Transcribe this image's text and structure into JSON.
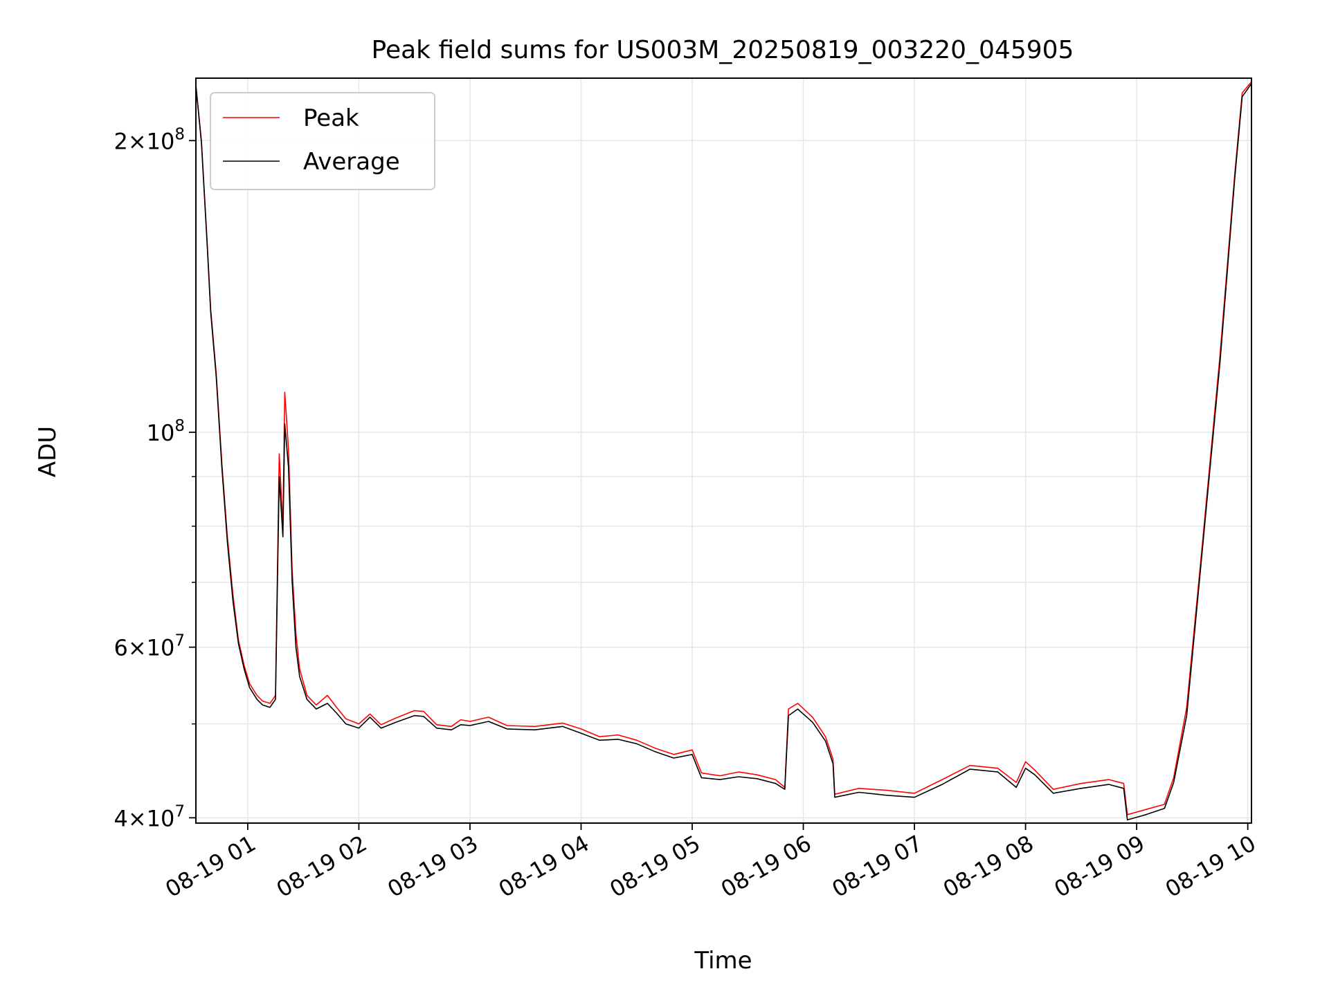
{
  "chart_data": {
    "type": "line",
    "title": "Peak field sums for US003M_20250819_003220_045905",
    "xlabel": "Time",
    "ylabel": "ADU",
    "y_scale": "log",
    "xlim": [
      "2025-08-19 00:32",
      "2025-08-19 10:02"
    ],
    "ylim": [
      39500000,
      232000000
    ],
    "x_ticks": [
      "2025-08-19 01:00",
      "2025-08-19 02:00",
      "2025-08-19 03:00",
      "2025-08-19 04:00",
      "2025-08-19 05:00",
      "2025-08-19 06:00",
      "2025-08-19 07:00",
      "2025-08-19 08:00",
      "2025-08-19 09:00",
      "2025-08-19 10:00"
    ],
    "x_tick_labels": [
      "08-19 01",
      "08-19 02",
      "08-19 03",
      "08-19 04",
      "08-19 05",
      "08-19 06",
      "08-19 07",
      "08-19 08",
      "08-19 09",
      "08-19 10"
    ],
    "y_major_ticks": [
      {
        "value": 40000000,
        "mantissa": "4",
        "exponent": "7"
      },
      {
        "value": 60000000,
        "mantissa": "6",
        "exponent": "7"
      },
      {
        "value": 100000000,
        "mantissa": "",
        "exponent": "8"
      },
      {
        "value": 200000000,
        "mantissa": "2",
        "exponent": "8"
      }
    ],
    "y_minor_gridlines": [
      50000000,
      70000000,
      80000000,
      90000000
    ],
    "grid": true,
    "legend": {
      "position": "top-left",
      "entries": [
        {
          "label": "Peak",
          "color": "#ff0000"
        },
        {
          "label": "Average",
          "color": "#000000"
        }
      ]
    },
    "series": [
      {
        "name": "Peak",
        "color": "#ff0000",
        "points": [
          [
            "2025-08-19 00:32",
            228000000
          ],
          [
            "2025-08-19 00:35",
            200000000
          ],
          [
            "2025-08-19 00:38",
            158000000
          ],
          [
            "2025-08-19 00:40",
            134000000
          ],
          [
            "2025-08-19 00:43",
            115000000
          ],
          [
            "2025-08-19 00:46",
            93000000
          ],
          [
            "2025-08-19 00:49",
            78000000
          ],
          [
            "2025-08-19 00:52",
            68000000
          ],
          [
            "2025-08-19 00:55",
            61000000
          ],
          [
            "2025-08-19 00:58",
            57500000
          ],
          [
            "2025-08-19 01:01",
            55000000
          ],
          [
            "2025-08-19 01:05",
            53500000
          ],
          [
            "2025-08-19 01:08",
            52800000
          ],
          [
            "2025-08-19 01:12",
            52500000
          ],
          [
            "2025-08-19 01:15",
            53500000
          ],
          [
            "2025-08-19 01:17",
            95000000
          ],
          [
            "2025-08-19 01:19",
            80000000
          ],
          [
            "2025-08-19 01:20",
            110000000
          ],
          [
            "2025-08-19 01:22",
            96000000
          ],
          [
            "2025-08-19 01:24",
            72000000
          ],
          [
            "2025-08-19 01:26",
            62000000
          ],
          [
            "2025-08-19 01:28",
            57000000
          ],
          [
            "2025-08-19 01:32",
            53500000
          ],
          [
            "2025-08-19 01:37",
            52300000
          ],
          [
            "2025-08-19 01:43",
            53500000
          ],
          [
            "2025-08-19 01:48",
            52000000
          ],
          [
            "2025-08-19 01:53",
            50600000
          ],
          [
            "2025-08-19 02:00",
            50000000
          ],
          [
            "2025-08-19 02:06",
            51200000
          ],
          [
            "2025-08-19 02:12",
            49900000
          ],
          [
            "2025-08-19 02:20",
            50700000
          ],
          [
            "2025-08-19 02:30",
            51600000
          ],
          [
            "2025-08-19 02:35",
            51500000
          ],
          [
            "2025-08-19 02:42",
            49900000
          ],
          [
            "2025-08-19 02:50",
            49700000
          ],
          [
            "2025-08-19 02:55",
            50500000
          ],
          [
            "2025-08-19 03:00",
            50300000
          ],
          [
            "2025-08-19 03:10",
            50800000
          ],
          [
            "2025-08-19 03:20",
            49800000
          ],
          [
            "2025-08-19 03:35",
            49700000
          ],
          [
            "2025-08-19 03:50",
            50100000
          ],
          [
            "2025-08-19 04:00",
            49400000
          ],
          [
            "2025-08-19 04:10",
            48500000
          ],
          [
            "2025-08-19 04:20",
            48700000
          ],
          [
            "2025-08-19 04:30",
            48100000
          ],
          [
            "2025-08-19 04:40",
            47200000
          ],
          [
            "2025-08-19 04:50",
            46500000
          ],
          [
            "2025-08-19 05:00",
            47000000
          ],
          [
            "2025-08-19 05:05",
            44500000
          ],
          [
            "2025-08-19 05:15",
            44200000
          ],
          [
            "2025-08-19 05:25",
            44600000
          ],
          [
            "2025-08-19 05:35",
            44300000
          ],
          [
            "2025-08-19 05:45",
            43800000
          ],
          [
            "2025-08-19 05:50",
            43000000
          ],
          [
            "2025-08-19 05:52",
            51800000
          ],
          [
            "2025-08-19 05:57",
            52500000
          ],
          [
            "2025-08-19 06:05",
            50800000
          ],
          [
            "2025-08-19 06:12",
            48500000
          ],
          [
            "2025-08-19 06:16",
            46000000
          ],
          [
            "2025-08-19 06:17",
            42300000
          ],
          [
            "2025-08-19 06:30",
            42900000
          ],
          [
            "2025-08-19 06:45",
            42700000
          ],
          [
            "2025-08-19 07:00",
            42400000
          ],
          [
            "2025-08-19 07:15",
            43800000
          ],
          [
            "2025-08-19 07:30",
            45300000
          ],
          [
            "2025-08-19 07:45",
            45000000
          ],
          [
            "2025-08-19 07:55",
            43500000
          ],
          [
            "2025-08-19 08:00",
            45700000
          ],
          [
            "2025-08-19 08:05",
            44800000
          ],
          [
            "2025-08-19 08:15",
            42800000
          ],
          [
            "2025-08-19 08:30",
            43400000
          ],
          [
            "2025-08-19 08:45",
            43800000
          ],
          [
            "2025-08-19 08:53",
            43400000
          ],
          [
            "2025-08-19 08:55",
            40300000
          ],
          [
            "2025-08-19 09:05",
            40800000
          ],
          [
            "2025-08-19 09:15",
            41300000
          ],
          [
            "2025-08-19 09:20",
            44000000
          ],
          [
            "2025-08-19 09:27",
            52000000
          ],
          [
            "2025-08-19 09:35",
            75000000
          ],
          [
            "2025-08-19 09:45",
            120000000
          ],
          [
            "2025-08-19 09:53",
            185000000
          ],
          [
            "2025-08-19 09:57",
            224000000
          ],
          [
            "2025-08-19 10:02",
            230000000
          ]
        ]
      },
      {
        "name": "Average",
        "color": "#000000",
        "points": [
          [
            "2025-08-19 00:32",
            228000000
          ],
          [
            "2025-08-19 00:35",
            199000000
          ],
          [
            "2025-08-19 00:38",
            157000000
          ],
          [
            "2025-08-19 00:40",
            133000000
          ],
          [
            "2025-08-19 00:43",
            114000000
          ],
          [
            "2025-08-19 00:46",
            92000000
          ],
          [
            "2025-08-19 00:49",
            77000000
          ],
          [
            "2025-08-19 00:52",
            67000000
          ],
          [
            "2025-08-19 00:55",
            60500000
          ],
          [
            "2025-08-19 00:58",
            57000000
          ],
          [
            "2025-08-19 01:01",
            54500000
          ],
          [
            "2025-08-19 01:05",
            53000000
          ],
          [
            "2025-08-19 01:08",
            52300000
          ],
          [
            "2025-08-19 01:12",
            52000000
          ],
          [
            "2025-08-19 01:15",
            53000000
          ],
          [
            "2025-08-19 01:17",
            90000000
          ],
          [
            "2025-08-19 01:19",
            78000000
          ],
          [
            "2025-08-19 01:20",
            102000000
          ],
          [
            "2025-08-19 01:22",
            92000000
          ],
          [
            "2025-08-19 01:24",
            70000000
          ],
          [
            "2025-08-19 01:26",
            60000000
          ],
          [
            "2025-08-19 01:28",
            56000000
          ],
          [
            "2025-08-19 01:32",
            53000000
          ],
          [
            "2025-08-19 01:37",
            51800000
          ],
          [
            "2025-08-19 01:43",
            52500000
          ],
          [
            "2025-08-19 01:48",
            51300000
          ],
          [
            "2025-08-19 01:53",
            50000000
          ],
          [
            "2025-08-19 02:00",
            49500000
          ],
          [
            "2025-08-19 02:06",
            50800000
          ],
          [
            "2025-08-19 02:12",
            49500000
          ],
          [
            "2025-08-19 02:20",
            50200000
          ],
          [
            "2025-08-19 02:30",
            51000000
          ],
          [
            "2025-08-19 02:35",
            50900000
          ],
          [
            "2025-08-19 02:42",
            49500000
          ],
          [
            "2025-08-19 02:50",
            49300000
          ],
          [
            "2025-08-19 02:55",
            49900000
          ],
          [
            "2025-08-19 03:00",
            49800000
          ],
          [
            "2025-08-19 03:10",
            50300000
          ],
          [
            "2025-08-19 03:20",
            49400000
          ],
          [
            "2025-08-19 03:35",
            49300000
          ],
          [
            "2025-08-19 03:50",
            49700000
          ],
          [
            "2025-08-19 04:00",
            48900000
          ],
          [
            "2025-08-19 04:10",
            48100000
          ],
          [
            "2025-08-19 04:20",
            48200000
          ],
          [
            "2025-08-19 04:30",
            47700000
          ],
          [
            "2025-08-19 04:40",
            46800000
          ],
          [
            "2025-08-19 04:50",
            46100000
          ],
          [
            "2025-08-19 05:00",
            46500000
          ],
          [
            "2025-08-19 05:05",
            44000000
          ],
          [
            "2025-08-19 05:15",
            43800000
          ],
          [
            "2025-08-19 05:25",
            44100000
          ],
          [
            "2025-08-19 05:35",
            43900000
          ],
          [
            "2025-08-19 05:45",
            43400000
          ],
          [
            "2025-08-19 05:50",
            42800000
          ],
          [
            "2025-08-19 05:52",
            51000000
          ],
          [
            "2025-08-19 05:57",
            51800000
          ],
          [
            "2025-08-19 06:05",
            50200000
          ],
          [
            "2025-08-19 06:12",
            48000000
          ],
          [
            "2025-08-19 06:16",
            45500000
          ],
          [
            "2025-08-19 06:17",
            42000000
          ],
          [
            "2025-08-19 06:30",
            42500000
          ],
          [
            "2025-08-19 06:45",
            42200000
          ],
          [
            "2025-08-19 07:00",
            42000000
          ],
          [
            "2025-08-19 07:15",
            43300000
          ],
          [
            "2025-08-19 07:30",
            44900000
          ],
          [
            "2025-08-19 07:45",
            44600000
          ],
          [
            "2025-08-19 07:55",
            43000000
          ],
          [
            "2025-08-19 08:00",
            45000000
          ],
          [
            "2025-08-19 08:05",
            44300000
          ],
          [
            "2025-08-19 08:15",
            42400000
          ],
          [
            "2025-08-19 08:30",
            42900000
          ],
          [
            "2025-08-19 08:45",
            43300000
          ],
          [
            "2025-08-19 08:53",
            42900000
          ],
          [
            "2025-08-19 08:55",
            39800000
          ],
          [
            "2025-08-19 09:05",
            40300000
          ],
          [
            "2025-08-19 09:15",
            40900000
          ],
          [
            "2025-08-19 09:20",
            43500000
          ],
          [
            "2025-08-19 09:27",
            51000000
          ],
          [
            "2025-08-19 09:35",
            74000000
          ],
          [
            "2025-08-19 09:45",
            118000000
          ],
          [
            "2025-08-19 09:53",
            183000000
          ],
          [
            "2025-08-19 09:57",
            222000000
          ],
          [
            "2025-08-19 10:02",
            229000000
          ]
        ]
      }
    ]
  }
}
